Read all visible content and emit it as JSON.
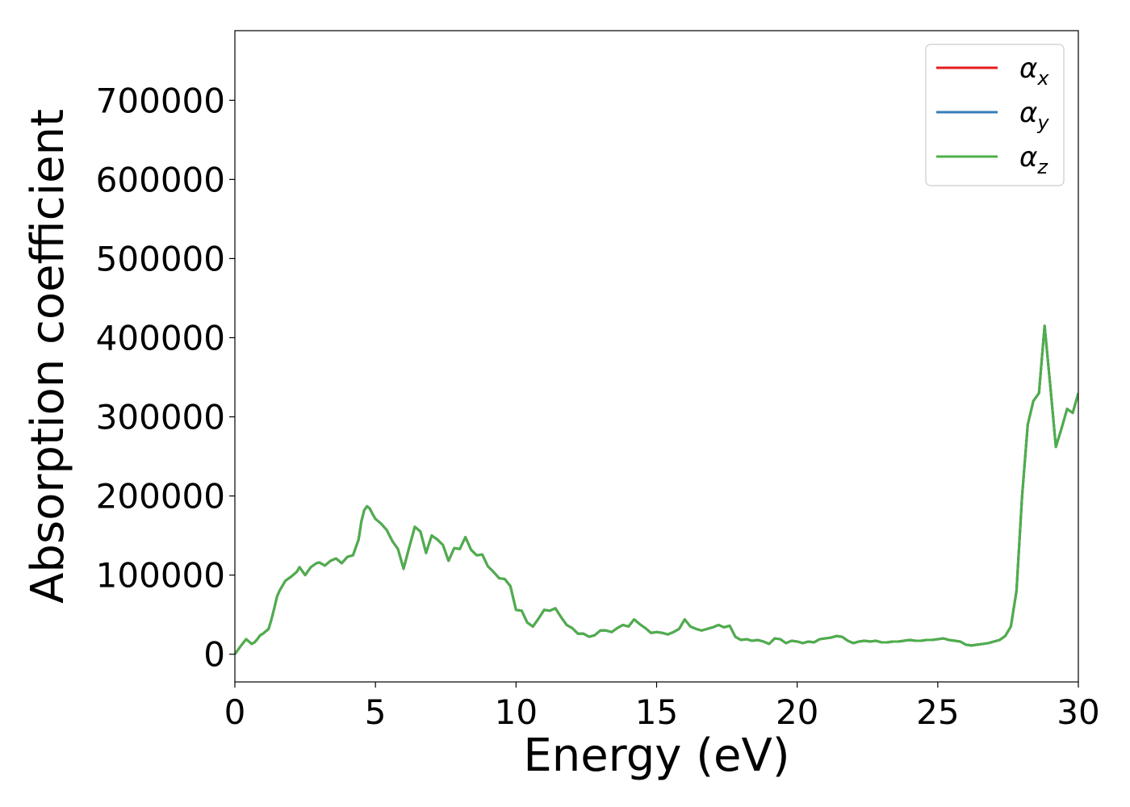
{
  "chart_data": {
    "type": "line",
    "xlabel": "Energy (eV)",
    "ylabel": "Absorption coefficient",
    "xlim": [
      0,
      30
    ],
    "ylim": [
      -35000,
      788000
    ],
    "xticks": [
      0,
      5,
      10,
      15,
      20,
      25,
      30
    ],
    "yticks": [
      0,
      100000,
      200000,
      300000,
      400000,
      500000,
      600000,
      700000
    ],
    "xtick_labels": [
      "0",
      "5",
      "10",
      "15",
      "20",
      "25",
      "30"
    ],
    "ytick_labels": [
      "0",
      "100000",
      "200000",
      "300000",
      "400000",
      "500000",
      "600000",
      "700000"
    ],
    "grid": false,
    "legend_position": "top-right",
    "series": [
      {
        "name": "αx",
        "symbol": "α",
        "subscript": "x",
        "color": "#e41a1c",
        "x": [
          0,
          0.2,
          0.4,
          0.5,
          0.6,
          0.7,
          0.8,
          0.9,
          1.0,
          1.2,
          1.3,
          1.4,
          1.5,
          1.6,
          1.7,
          1.8,
          2.0,
          2.2,
          2.3,
          2.5,
          2.7,
          2.9,
          3.0,
          3.2,
          3.4,
          3.6,
          3.8,
          4.0,
          4.2,
          4.4,
          4.5,
          4.6,
          4.7,
          4.8,
          4.9,
          5.0,
          5.2,
          5.4,
          5.6,
          5.8,
          6.0,
          6.2,
          6.4,
          6.6,
          6.8,
          7.0,
          7.2,
          7.4,
          7.6,
          7.8,
          8.0,
          8.2,
          8.4,
          8.6,
          8.8,
          9.0,
          9.2,
          9.4,
          9.6,
          9.8,
          10.0,
          10.2,
          10.4,
          10.6,
          10.8,
          11.0,
          11.2,
          11.4,
          11.6,
          11.8,
          12.0,
          12.2,
          12.4,
          12.6,
          12.8,
          13.0,
          13.2,
          13.4,
          13.6,
          13.8,
          14.0,
          14.2,
          14.4,
          14.6,
          14.8,
          15.0,
          15.2,
          15.4,
          15.6,
          15.8,
          16.0,
          16.2,
          16.4,
          16.6,
          16.8,
          17.0,
          17.2,
          17.4,
          17.6,
          17.8,
          18.0,
          18.2,
          18.4,
          18.6,
          18.8,
          19.0,
          19.2,
          19.4,
          19.6,
          19.8,
          20.0,
          20.2,
          20.4,
          20.6,
          20.8,
          21.0,
          21.2,
          21.4,
          21.6,
          21.8,
          22.0,
          22.2,
          22.4,
          22.6,
          22.8,
          23.0,
          23.2,
          23.4,
          23.6,
          23.8,
          24.0,
          24.2,
          24.4,
          24.6,
          24.8,
          25.0,
          25.2,
          25.4,
          25.6,
          25.8,
          26.0,
          26.2,
          26.4,
          26.6,
          26.8,
          27.0,
          27.2,
          27.4,
          27.6,
          27.8,
          28.0,
          28.2,
          28.4,
          28.6,
          28.8,
          29.0,
          29.2,
          29.4,
          29.6,
          29.8,
          30.0
        ],
        "y": [
          0,
          10000,
          19000,
          16000,
          13000,
          15000,
          19000,
          24000,
          26000,
          32000,
          44000,
          58000,
          73000,
          81000,
          87000,
          93000,
          98000,
          104000,
          110000,
          100000,
          110000,
          115000,
          116000,
          112000,
          118000,
          121000,
          115000,
          123000,
          125000,
          145000,
          168000,
          182000,
          187000,
          184000,
          177000,
          171000,
          165000,
          157000,
          143000,
          133000,
          108000,
          135000,
          161000,
          155000,
          128000,
          150000,
          145000,
          138000,
          118000,
          134000,
          133000,
          148000,
          132000,
          125000,
          126000,
          111000,
          104000,
          96000,
          95000,
          86000,
          56000,
          55000,
          40000,
          35000,
          45000,
          56000,
          55000,
          58000,
          47000,
          37000,
          33000,
          26000,
          26000,
          22000,
          24000,
          30000,
          30000,
          28000,
          33000,
          37000,
          35000,
          44000,
          38000,
          33000,
          27000,
          28000,
          27000,
          25000,
          28000,
          32000,
          44000,
          35000,
          32000,
          30000,
          32000,
          34000,
          37000,
          34000,
          36000,
          22000,
          18000,
          19000,
          17000,
          18000,
          16000,
          13000,
          20000,
          19000,
          14000,
          17000,
          16000,
          14000,
          16000,
          15000,
          19000,
          20000,
          21000,
          23000,
          22000,
          17000,
          14000,
          16000,
          17000,
          16000,
          17000,
          15000,
          15000,
          16000,
          16000,
          17000,
          18000,
          17000,
          17000,
          18000,
          18000,
          19000,
          20000,
          18000,
          17000,
          16000,
          12000,
          11000,
          12000,
          13000,
          14000,
          16000,
          18000,
          23000,
          35000,
          80000,
          200000,
          290000,
          320000,
          330000,
          415000,
          340000,
          262000,
          285000,
          310000,
          305000,
          330000
        ]
      },
      {
        "name": "αy",
        "symbol": "α",
        "subscript": "y",
        "color": "#377eb8",
        "same_as": "αx"
      },
      {
        "name": "αz",
        "symbol": "α",
        "subscript": "z",
        "color": "#4daf4a",
        "same_as": "αx"
      }
    ]
  }
}
